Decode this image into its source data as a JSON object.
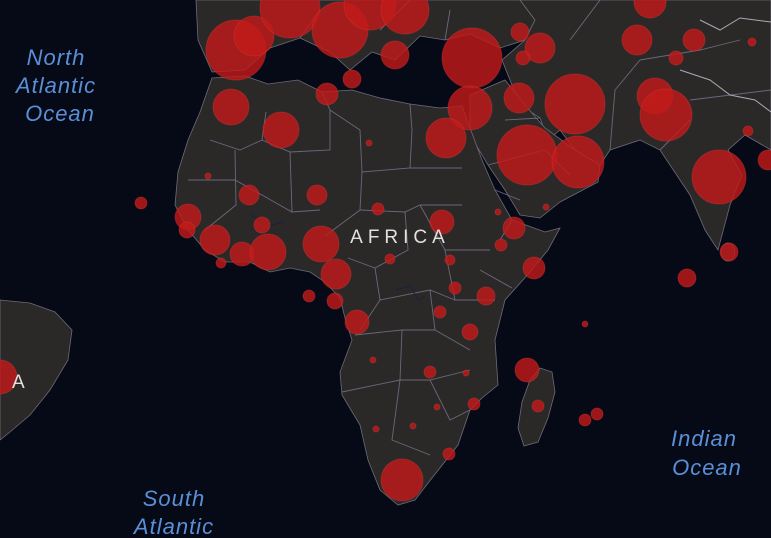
{
  "map": {
    "continent_label": "AFRICA",
    "partial_label": "A",
    "ocean_labels": {
      "north_atlantic": [
        "North",
        "Atlantic",
        "Ocean"
      ],
      "south_atlantic": [
        "South",
        "Atlantic"
      ],
      "indian": [
        "Indian",
        "Ocean"
      ]
    },
    "colors": {
      "ocean": "#050a16",
      "land": "#2b2928",
      "borders": "#77728a",
      "bubble": "#c21a1a",
      "ocean_label": "#5a8fd8",
      "continent_label": "#e2e0e0"
    }
  }
}
